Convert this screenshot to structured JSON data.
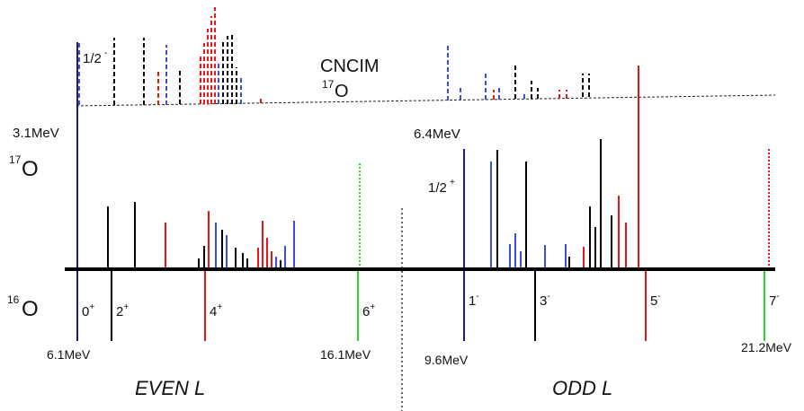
{
  "labels": {
    "cncim": "CNCIM",
    "o17_sup_top": "17",
    "o17_base_top": "O",
    "o17_sup_left": "17",
    "o17_base_left": "O",
    "o16_sup": "16",
    "o16_base": "O",
    "half_minus": "1/2",
    "half_minus_sup": "-",
    "half_plus": "1/2",
    "half_plus_sup": "+",
    "e_31": "3.1MeV",
    "e_64": "6.4MeV",
    "e_61": "6.1MeV",
    "e_161": "16.1MeV",
    "e_96": "9.6MeV",
    "e_212": "21.2MeV",
    "even_l": "EVEN L",
    "odd_l": "ODD L"
  },
  "o16_states": [
    {
      "j": "0",
      "parity": "+",
      "color": "#1a1a8c"
    },
    {
      "j": "2",
      "parity": "+",
      "color": "#000000"
    },
    {
      "j": "4",
      "parity": "+",
      "color": "#e8141a"
    },
    {
      "j": "6",
      "parity": "+",
      "color": "#22dd22"
    },
    {
      "j": "1",
      "parity": "-",
      "color": "#1a1a8c"
    },
    {
      "j": "3",
      "parity": "-",
      "color": "#000000"
    },
    {
      "j": "5",
      "parity": "-",
      "color": "#e8141a"
    },
    {
      "j": "7",
      "parity": "-",
      "color": "#22dd22"
    }
  ],
  "colors": {
    "blue": "#1a1a8c",
    "lightblue": "#3a4fd8",
    "black": "#000000",
    "red": "#e8141a",
    "green": "#22dd22"
  }
}
